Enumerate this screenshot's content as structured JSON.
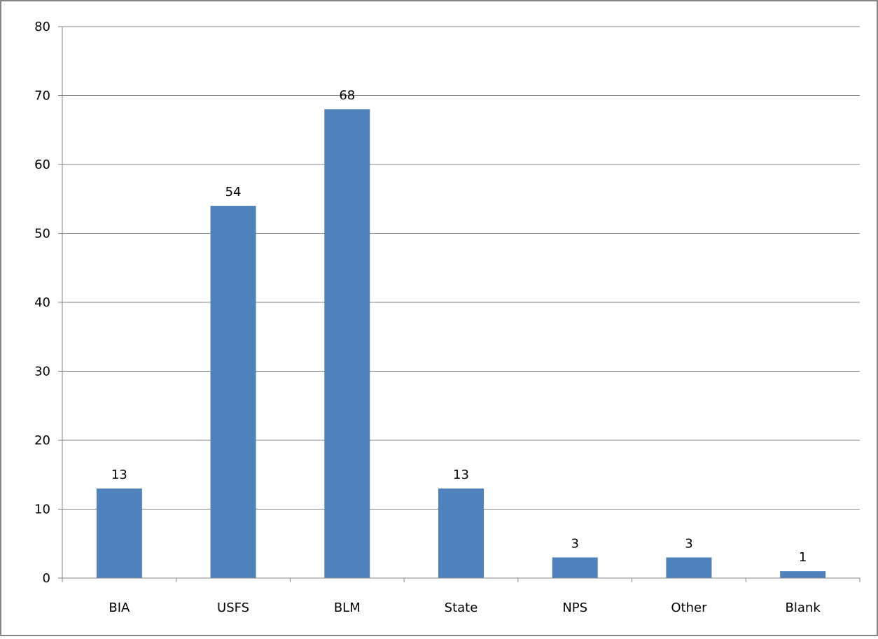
{
  "chart_data": {
    "type": "bar",
    "categories": [
      "BIA",
      "USFS",
      "BLM",
      "State",
      "NPS",
      "Other",
      "Blank"
    ],
    "values": [
      13,
      54,
      68,
      13,
      3,
      3,
      1
    ],
    "data_labels": [
      "13",
      "54",
      "68",
      "13",
      "3",
      "3",
      "1"
    ],
    "yticks": [
      "0",
      "10",
      "20",
      "30",
      "40",
      "50",
      "60",
      "70",
      "80"
    ],
    "ylim": [
      0,
      80
    ],
    "ytick_step": 10,
    "grid": true,
    "legend": "none",
    "bar_color": "#4F81BD",
    "grid_color": "#868686",
    "frame_color": "#868686"
  }
}
